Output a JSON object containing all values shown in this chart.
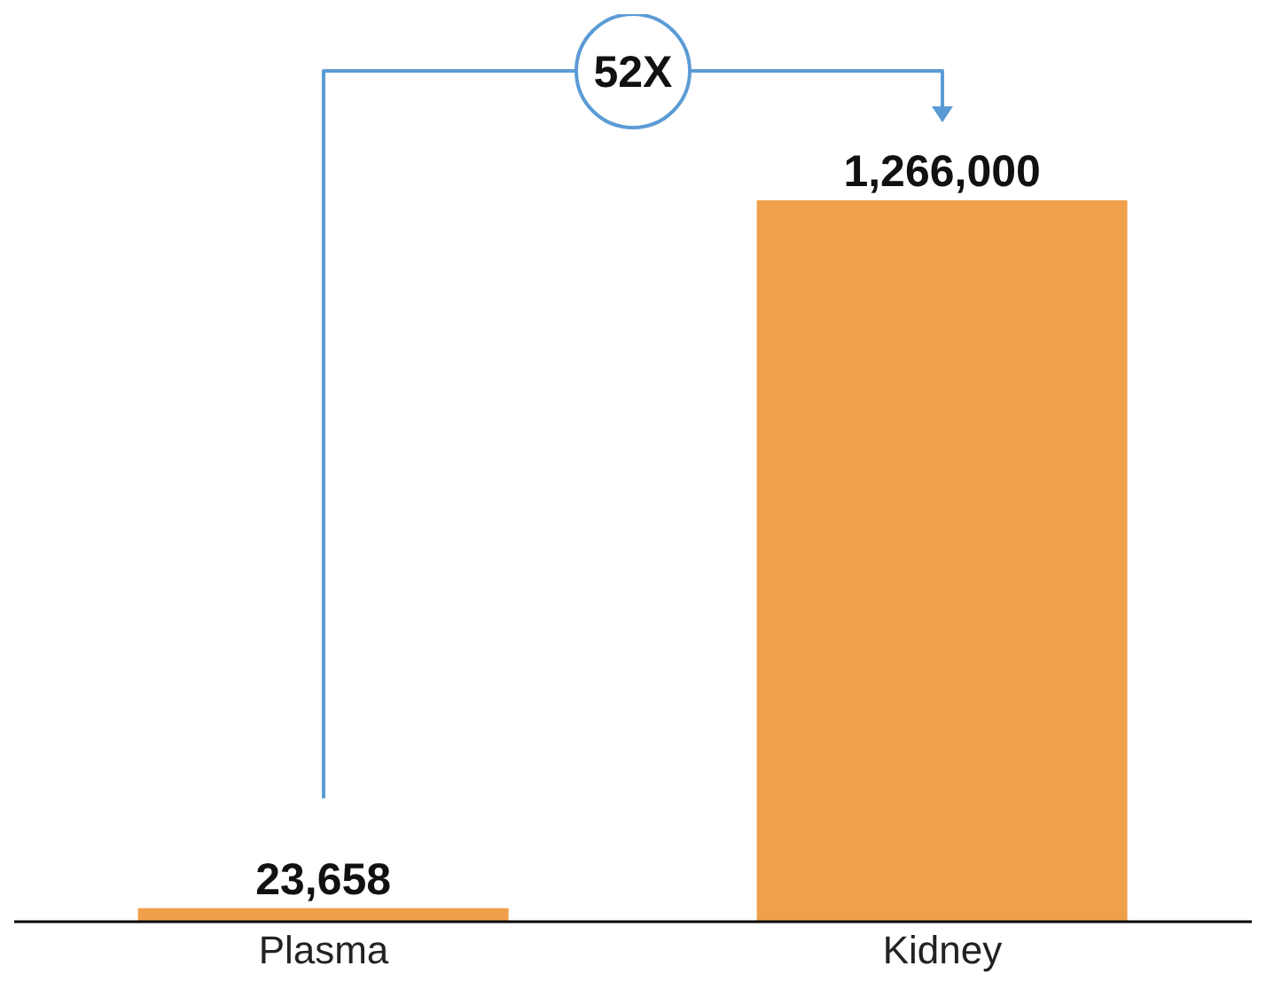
{
  "chart_data": {
    "type": "bar",
    "categories": [
      "Plasma",
      "Kidney"
    ],
    "values": [
      23658,
      1266000
    ],
    "color": "#f0a04b",
    "value_labels": [
      "23,658",
      "1,266,000"
    ],
    "annotations": [
      "52X"
    ]
  }
}
